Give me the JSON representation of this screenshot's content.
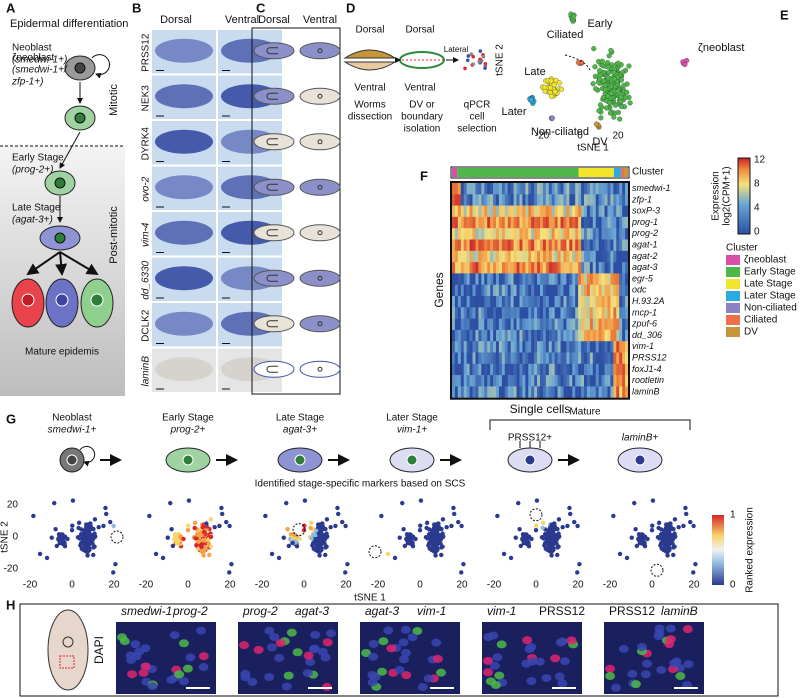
{
  "panel_a": {
    "letter": "A",
    "title": "Epidermal differentiation",
    "stages": [
      {
        "name": "Neoblast",
        "marker": [
          "(smedwi-1+)"
        ]
      },
      {
        "name": "ζneoblast",
        "marker": [
          "(smedwi-1+/",
          "zfp-1+)"
        ]
      },
      {
        "name": "Early Stage",
        "marker": [
          "(prog-2+)"
        ]
      },
      {
        "name": "Late Stage",
        "marker": [
          "(agat-3+)"
        ]
      }
    ],
    "mitotic": "Mitotic",
    "post_mitotic": "Post-mitotic",
    "mature": "Mature epidemis"
  },
  "panel_b": {
    "letter": "B",
    "columns": [
      "Dorsal",
      "Ventral"
    ],
    "rows": [
      "PRSS12",
      "NEK3",
      "DYRK4",
      "ovo-2",
      "vim-4",
      "dd_6330",
      "DCLK2",
      "laminB"
    ]
  },
  "panel_c": {
    "letter": "C",
    "columns": [
      "Dorsal",
      "Ventral"
    ]
  },
  "panel_d": {
    "letter": "D",
    "labels": [
      "Dorsal",
      "Ventral",
      "Dorsal",
      "Lateral",
      "Ventral"
    ],
    "steps": [
      [
        "Worms",
        "dissection"
      ],
      [
        "DV or",
        "boundary",
        "isolation"
      ],
      [
        "qPCR",
        "cell",
        "selection"
      ]
    ]
  },
  "panel_e": {
    "letter": "E",
    "clusters": [
      "Early",
      "Ciliated",
      "ζneoblast",
      "Late",
      "Later",
      "Non-ciliated",
      "DV"
    ],
    "x_label": "tSNE 1",
    "y_label": "tSNE 2",
    "xticks": [
      -20,
      0,
      20
    ]
  },
  "panel_f": {
    "letter": "F",
    "cluster_label": "Cluster",
    "genes": [
      {
        "name": "smedwi-1",
        "color": "#e0262f"
      },
      {
        "name": "zfp-1",
        "color": "#111"
      },
      {
        "name": "soxP-3",
        "color": "#111"
      },
      {
        "name": "prog-1",
        "color": "#111"
      },
      {
        "name": "prog-2",
        "color": "#e0262f"
      },
      {
        "name": "agat-1",
        "color": "#111"
      },
      {
        "name": "agat-2",
        "color": "#111"
      },
      {
        "name": "agat-3",
        "color": "#e0262f"
      },
      {
        "name": "egr-5",
        "color": "#111"
      },
      {
        "name": "odc",
        "color": "#111"
      },
      {
        "name": "H.93.2A",
        "color": "#111"
      },
      {
        "name": "mcp-1",
        "color": "#111"
      },
      {
        "name": "zpuf-6",
        "color": "#111"
      },
      {
        "name": "dd_306",
        "color": "#111"
      },
      {
        "name": "vim-1",
        "color": "#e0262f"
      },
      {
        "name": "PRSS12",
        "color": "#e0262f"
      },
      {
        "name": "foxJ1-4",
        "color": "#111"
      },
      {
        "name": "rootletin",
        "color": "#111"
      },
      {
        "name": "laminB",
        "color": "#e0262f"
      }
    ],
    "y_label": "Genes",
    "x_label": "Single cells",
    "colorbar_title": [
      "Expression",
      "log2(CPM+1)"
    ],
    "colorbar_ticks": [
      0,
      4,
      8,
      12
    ],
    "legend_title": "Cluster",
    "legend": [
      {
        "name": "ζneoblast",
        "color": "#d94fa8"
      },
      {
        "name": "Early Stage",
        "color": "#4db848"
      },
      {
        "name": "Late Stage",
        "color": "#f2e52a"
      },
      {
        "name": "Later Stage",
        "color": "#29abe2"
      },
      {
        "name": "Non-ciliated",
        "color": "#8b83c2"
      },
      {
        "name": "Ciliated",
        "color": "#ef6f4a"
      },
      {
        "name": "DV",
        "color": "#c8963a"
      }
    ]
  },
  "panel_g": {
    "letter": "G",
    "stages": [
      {
        "name": "Neoblast",
        "marker": "smedwi-1+"
      },
      {
        "name": "Early Stage",
        "marker": "prog-2+"
      },
      {
        "name": "Late Stage",
        "marker": "agat-3+"
      },
      {
        "name": "Later Stage",
        "marker": "vim-1+"
      }
    ],
    "mature": "Mature",
    "mature_markers": [
      "PRSS12+",
      "laminB+"
    ],
    "subtitle": "Identified stage-specific markers based on SCS",
    "x_label": "tSNE 1",
    "y_label": "tSNE 2",
    "xticks": [
      -20,
      0,
      20
    ],
    "yticks": [
      20,
      0,
      -20
    ],
    "colorbar_title": "Ranked expression",
    "colorbar_ticks": [
      0,
      1
    ]
  },
  "panel_h": {
    "letter": "H",
    "dapi": "DAPI",
    "pairs": [
      [
        "smedwi-1",
        "prog-2"
      ],
      [
        "prog-2",
        "agat-3"
      ],
      [
        "agat-3",
        "vim-1"
      ],
      [
        "vim-1",
        "PRSS12"
      ],
      [
        "PRSS12",
        "laminB"
      ]
    ]
  }
}
